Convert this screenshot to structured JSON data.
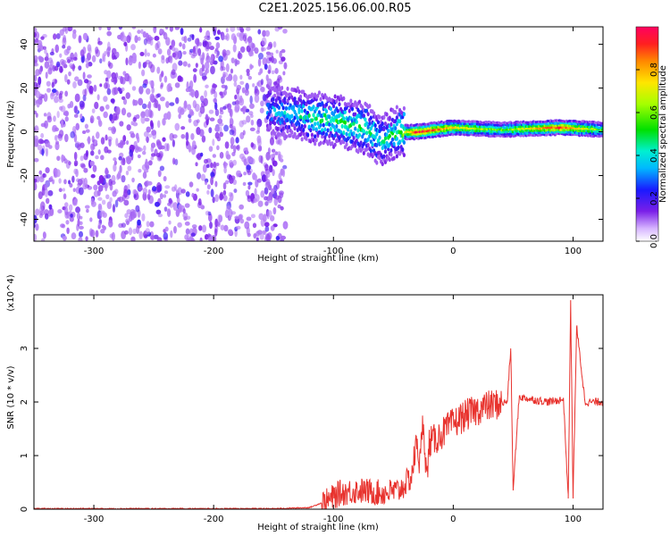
{
  "title": "C2E1.2025.156.06.00.R05",
  "colors": {
    "snr_line": "#e8332e",
    "spectro_low": "#7b1fe0",
    "axis": "#000000"
  },
  "chart_data": [
    {
      "type": "heatmap",
      "xlabel": "Height of straight line (km)",
      "ylabel": "Frequency (Hz)",
      "xlim": [
        -350,
        125
      ],
      "ylim": [
        -50,
        48
      ],
      "xticks": [
        -300,
        -200,
        -100,
        0,
        100
      ],
      "yticks": [
        -40,
        -20,
        0,
        20,
        40
      ],
      "grid": false,
      "colorbar": {
        "label": "Normalized spectral amplitude",
        "range": [
          0.0,
          1.0
        ],
        "ticks": [
          "0.0",
          "0.2",
          "0.4",
          "0.6",
          "0.8"
        ],
        "colormap": "rainbow (violet → red)"
      },
      "ridge": [
        {
          "x": -155,
          "freq": 10,
          "amp": 0.3
        },
        {
          "x": -130,
          "freq": 8,
          "amp": 0.4
        },
        {
          "x": -110,
          "freq": 6,
          "amp": 0.45
        },
        {
          "x": -90,
          "freq": 4,
          "amp": 0.5
        },
        {
          "x": -75,
          "freq": 2,
          "amp": 0.45
        },
        {
          "x": -60,
          "freq": -4,
          "amp": 0.4
        },
        {
          "x": -45,
          "freq": 0,
          "amp": 0.5
        },
        {
          "x": -30,
          "freq": 0,
          "amp": 0.95
        },
        {
          "x": 0,
          "freq": 2,
          "amp": 0.75
        },
        {
          "x": 40,
          "freq": 1,
          "amp": 0.55
        },
        {
          "x": 90,
          "freq": 2,
          "amp": 0.9
        },
        {
          "x": 125,
          "freq": 1,
          "amp": 0.55
        }
      ]
    },
    {
      "type": "line",
      "xlabel": "Height of straight line (km)",
      "ylabel": "SNR (10 * v/v)",
      "y_multiplier": "(x10^4)",
      "xlim": [
        -350,
        125
      ],
      "ylim": [
        0,
        4.0
      ],
      "xticks": [
        -300,
        -200,
        -100,
        0,
        100
      ],
      "yticks": [
        0,
        1,
        2,
        3
      ],
      "grid": false,
      "series": [
        {
          "x": [
            -350,
            -250,
            -150,
            -120,
            -105,
            -95,
            -80,
            -60,
            -45,
            -35,
            -30,
            -28,
            -25,
            -22,
            -20,
            -15,
            -10,
            0,
            10,
            25,
            35,
            45,
            48,
            50,
            55,
            65,
            80,
            92,
            96,
            98,
            100,
            103,
            110,
            125
          ],
          "y": [
            0.0,
            0.0,
            0.0,
            0.02,
            0.15,
            0.3,
            0.35,
            0.3,
            0.35,
            0.6,
            1.3,
            0.8,
            1.7,
            0.5,
            1.25,
            1.3,
            1.4,
            1.6,
            1.75,
            1.9,
            1.95,
            2.0,
            3.0,
            0.35,
            2.1,
            2.05,
            2.0,
            2.05,
            0.2,
            3.9,
            0.2,
            3.4,
            2.0,
            2.0
          ]
        }
      ]
    }
  ]
}
